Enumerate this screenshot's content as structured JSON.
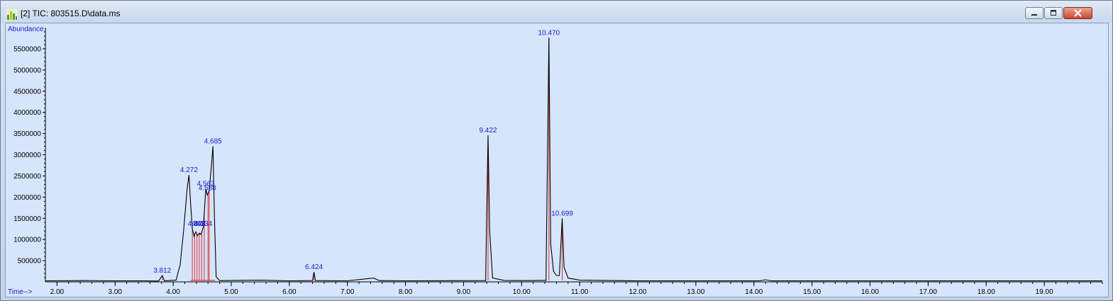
{
  "window": {
    "title": "[2] TIC: 803515.D\\data.ms",
    "icon": "chromatogram-icon",
    "controls": [
      "minimize-icon",
      "maximize-icon",
      "close-icon"
    ]
  },
  "colors": {
    "plot_bg": "#d5e5fb",
    "trace": "#000000",
    "label": "#1c1cd0",
    "integration": "#e03030"
  },
  "chart_data": {
    "type": "line",
    "ylabel": "Abundance",
    "xlabel": "Time-->",
    "xlim": [
      1.8,
      20.0
    ],
    "ylim": [
      0,
      6000000
    ],
    "x_ticks": [
      "2.00",
      "3.00",
      "4.00",
      "5.00",
      "6.00",
      "7.00",
      "8.00",
      "9.00",
      "10.00",
      "11.00",
      "12.00",
      "13.00",
      "14.00",
      "15.00",
      "16.00",
      "17.00",
      "18.00",
      "19.00"
    ],
    "y_ticks": [
      "500000",
      "1000000",
      "1500000",
      "2000000",
      "2500000",
      "3000000",
      "3500000",
      "4000000",
      "4500000",
      "5000000",
      "5500000"
    ],
    "grid": false,
    "series": [
      {
        "points": [
          [
            1.8,
            25000
          ],
          [
            2.5,
            30000
          ],
          [
            3.0,
            25000
          ],
          [
            3.5,
            25000
          ],
          [
            3.75,
            20000
          ],
          [
            3.812,
            150000
          ],
          [
            3.85,
            25000
          ],
          [
            4.05,
            40000
          ],
          [
            4.12,
            400000
          ],
          [
            4.18,
            1200000
          ],
          [
            4.24,
            2200000
          ],
          [
            4.272,
            2520000
          ],
          [
            4.3,
            1850000
          ],
          [
            4.33,
            1250000
          ],
          [
            4.36,
            1080000
          ],
          [
            4.39,
            1180000
          ],
          [
            4.42,
            1090000
          ],
          [
            4.45,
            1150000
          ],
          [
            4.48,
            1120000
          ],
          [
            4.52,
            1300000
          ],
          [
            4.562,
            2200000
          ],
          [
            4.588,
            2050000
          ],
          [
            4.62,
            2150000
          ],
          [
            4.65,
            2600000
          ],
          [
            4.685,
            3200000
          ],
          [
            4.71,
            1600000
          ],
          [
            4.74,
            120000
          ],
          [
            4.8,
            30000
          ],
          [
            5.5,
            40000
          ],
          [
            6.0,
            25000
          ],
          [
            6.4,
            30000
          ],
          [
            6.424,
            230000
          ],
          [
            6.45,
            30000
          ],
          [
            7.0,
            25000
          ],
          [
            7.45,
            90000
          ],
          [
            7.55,
            30000
          ],
          [
            8.0,
            25000
          ],
          [
            9.38,
            30000
          ],
          [
            9.422,
            3460000
          ],
          [
            9.45,
            1200000
          ],
          [
            9.5,
            90000
          ],
          [
            9.7,
            35000
          ],
          [
            10.0,
            30000
          ],
          [
            10.42,
            35000
          ],
          [
            10.47,
            5760000
          ],
          [
            10.5,
            900000
          ],
          [
            10.55,
            250000
          ],
          [
            10.6,
            150000
          ],
          [
            10.65,
            150000
          ],
          [
            10.699,
            1500000
          ],
          [
            10.73,
            350000
          ],
          [
            10.8,
            90000
          ],
          [
            11.0,
            40000
          ],
          [
            12.0,
            25000
          ],
          [
            14.1,
            25000
          ],
          [
            14.2,
            50000
          ],
          [
            14.3,
            25000
          ],
          [
            20.0,
            25000
          ]
        ]
      }
    ],
    "peak_labels": [
      {
        "x": 3.812,
        "y": 150000,
        "text": "3.812"
      },
      {
        "x": 4.272,
        "y": 2520000,
        "text": "4.272"
      },
      {
        "x": 4.335,
        "y": 1250000,
        "text": "4.3"
      },
      {
        "x": 4.4,
        "y": 1250000,
        "text": "4.4"
      },
      {
        "x": 4.44,
        "y": 1250000,
        "text": "4.4"
      },
      {
        "x": 4.48,
        "y": 1250000,
        "text": "4.4"
      },
      {
        "x": 4.52,
        "y": 1250000,
        "text": "4.534"
      },
      {
        "x": 4.562,
        "y": 2200000,
        "text": "4.562"
      },
      {
        "x": 4.588,
        "y": 2100000,
        "text": "4.588"
      },
      {
        "x": 4.685,
        "y": 3200000,
        "text": "4.685"
      },
      {
        "x": 6.424,
        "y": 230000,
        "text": "6.424"
      },
      {
        "x": 9.422,
        "y": 3460000,
        "text": "9.422"
      },
      {
        "x": 10.47,
        "y": 5760000,
        "text": "10.470"
      },
      {
        "x": 10.699,
        "y": 1500000,
        "text": "10.699"
      }
    ],
    "integration_marks": [
      3.812,
      4.33,
      4.37,
      4.41,
      4.45,
      4.49,
      4.535,
      4.6,
      4.62,
      6.424,
      9.422,
      10.47,
      10.699
    ]
  }
}
